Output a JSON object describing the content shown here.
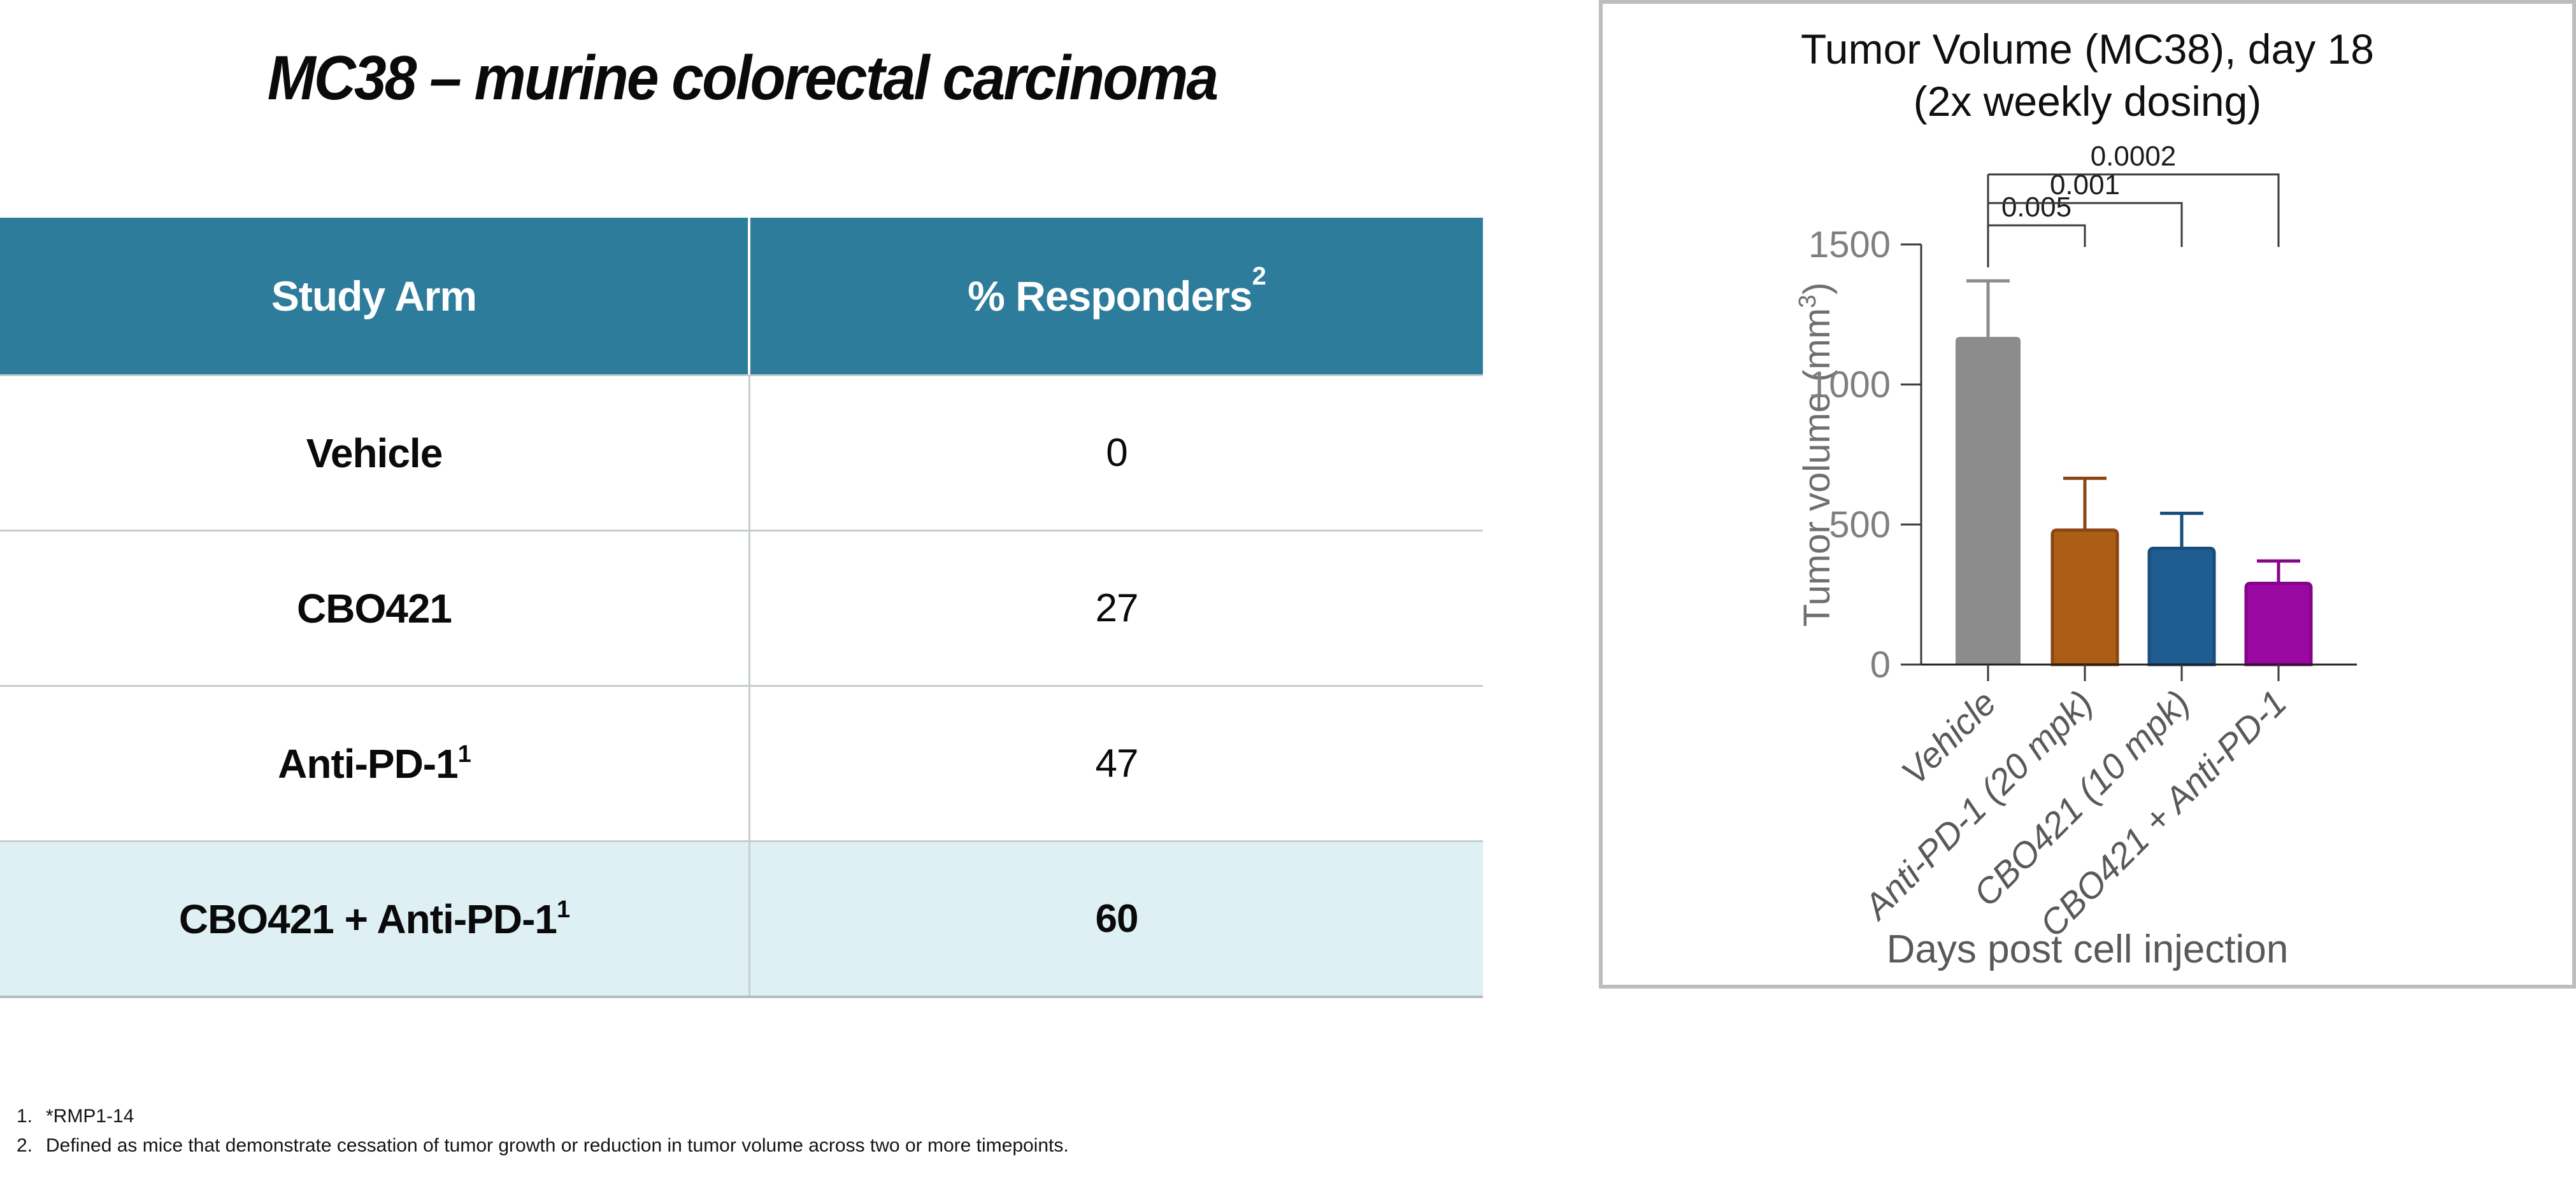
{
  "slide": {
    "title": "MC38 – murine colorectal carcinoma",
    "footnotes": [
      {
        "num": "1.",
        "text": "*RMP1-14"
      },
      {
        "num": "2.",
        "text": "Defined as mice that demonstrate cessation of tumor growth or reduction in tumor volume across two or more timepoints."
      }
    ]
  },
  "table": {
    "header": {
      "study_arm": "Study Arm",
      "responders": "% Responders",
      "responders_sup": "2"
    },
    "rows": [
      {
        "arm": "Vehicle",
        "arm_sup": "",
        "value": "0",
        "value_bold": false,
        "highlight": false
      },
      {
        "arm": "CBO421",
        "arm_sup": "",
        "value": "27",
        "value_bold": false,
        "highlight": false
      },
      {
        "arm": "Anti-PD-1",
        "arm_sup": "1",
        "value": "47",
        "value_bold": false,
        "highlight": false
      },
      {
        "arm": "CBO421 + Anti-PD-1",
        "arm_sup": "1",
        "value": "60",
        "value_bold": true,
        "highlight": true
      }
    ],
    "colors": {
      "header_bg": "#2e7c9c",
      "highlight_bg": "#dff0f5",
      "grid_line": "#c6cdd0"
    }
  },
  "chart_data": {
    "type": "bar",
    "title_line1": "Tumor Volume (MC38), day 18",
    "title_line2": "(2x weekly dosing)",
    "ylabel_prefix": "Tumor volume (mm",
    "ylabel_sup": "3",
    "ylabel_suffix": ")",
    "xlabel": "Days post cell injection",
    "categories": [
      "Vehicle",
      "Anti-PD-1 (20 mpk)",
      "CBO421 (10 mpk)",
      "CBO421 + Anti-PD-1"
    ],
    "values": [
      1170,
      480,
      415,
      290
    ],
    "error_high": [
      1370,
      665,
      540,
      370
    ],
    "ylim": [
      0,
      1500
    ],
    "yticks": [
      0,
      500,
      1000,
      1500
    ],
    "grid": false,
    "legend": "none",
    "bar_colors": [
      "#8c8c8c",
      "#ac5e17",
      "#1e5c92",
      "#9a08a2"
    ],
    "bar_strokes": [
      "#8c8c8c",
      "#8a4613",
      "#174e7e",
      "#84058a"
    ],
    "significance": [
      {
        "label": "0.005",
        "from": 0,
        "to": 1
      },
      {
        "label": "0.001",
        "from": 0,
        "to": 2
      },
      {
        "label": "0.0002",
        "from": 0,
        "to": 3
      }
    ],
    "panel_border_color": "#bdbdbd",
    "axis_color": "#3a3a3a",
    "tick_label_color": "#7f7f7f",
    "x_label_color": "#595959",
    "title_color": "#0f0f0f"
  }
}
